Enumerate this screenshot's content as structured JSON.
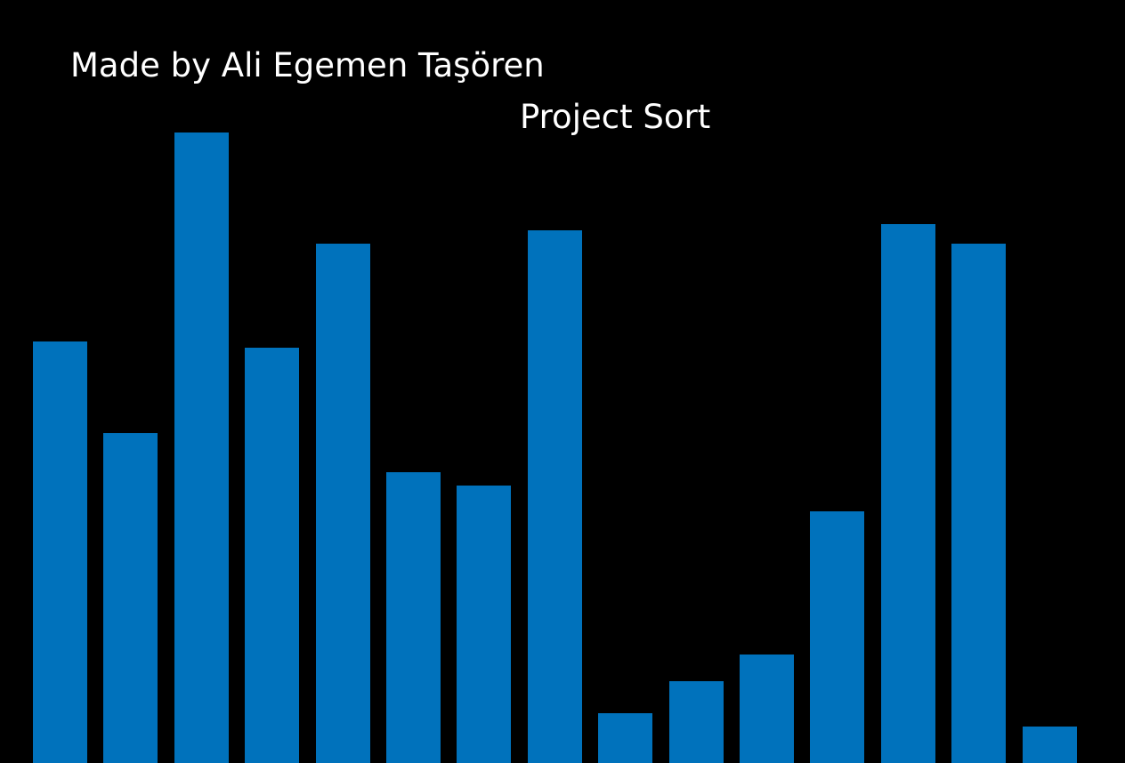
{
  "credit": "Made by Ali Egemen Taşören",
  "title": "Project Sort",
  "colors": {
    "background": "#000000",
    "text": "#ffffff",
    "bar": "#0072bc"
  },
  "chart_data": {
    "type": "bar",
    "values": [
      474,
      371,
      709,
      467,
      584,
      327,
      312,
      599,
      56,
      92,
      122,
      283,
      606,
      584,
      41
    ]
  }
}
